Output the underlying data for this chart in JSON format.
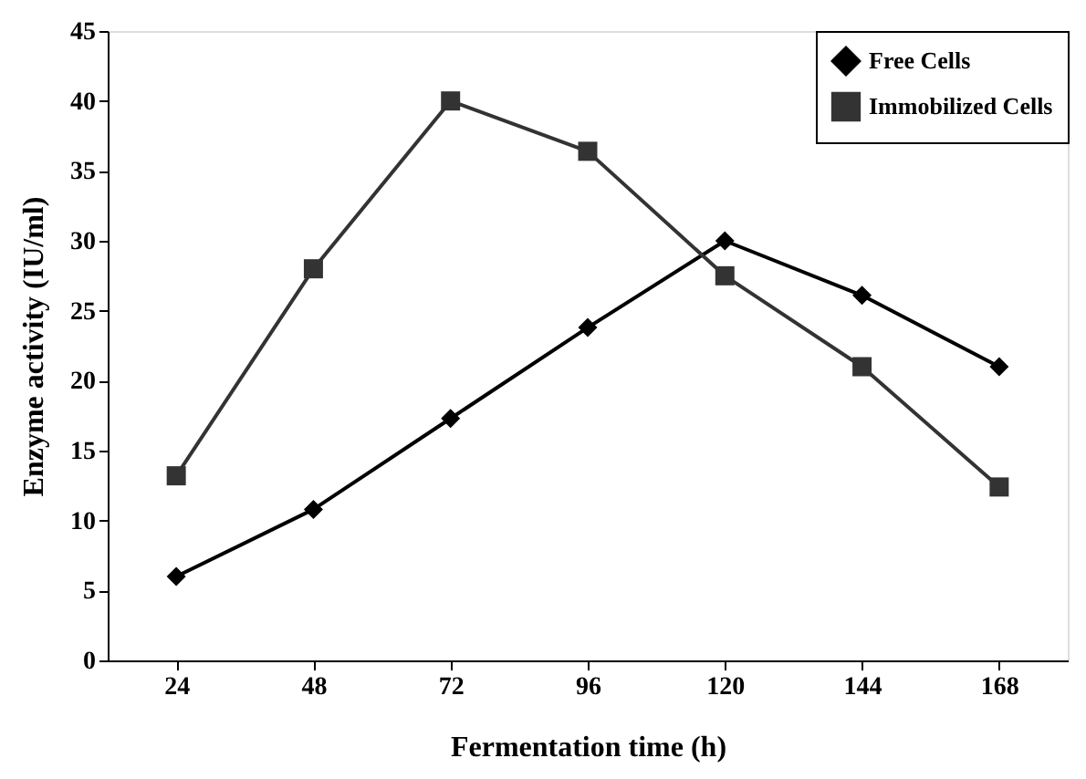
{
  "chart_data": {
    "type": "line",
    "xlabel": "Fermentation time (h)",
    "ylabel": "Enzyme activity (IU/ml)",
    "categories": [
      "24",
      "48",
      "72",
      "96",
      "120",
      "144",
      "168"
    ],
    "series": [
      {
        "name": "Free Cells",
        "color": "#000000",
        "marker": "diamond",
        "values": [
          6.0,
          10.8,
          17.3,
          23.8,
          30.0,
          26.1,
          21.0
        ]
      },
      {
        "name": "Immobilized Cells",
        "color": "#333333",
        "marker": "square",
        "values": [
          13.2,
          28.0,
          40.0,
          36.4,
          27.5,
          21.0,
          12.4
        ]
      }
    ],
    "ylim": [
      0,
      45
    ],
    "yticks": [
      0,
      5,
      10,
      15,
      20,
      25,
      30,
      35,
      40,
      45
    ],
    "grid": false,
    "legend": "top right",
    "line_style": "solid"
  }
}
